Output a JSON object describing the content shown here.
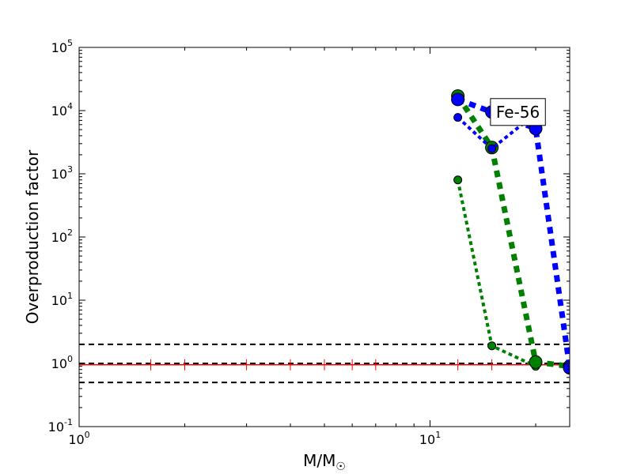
{
  "chart_data": {
    "type": "line",
    "title": "",
    "xlabel": "M/M",
    "xlabel_sub": "☉",
    "ylabel": "Overproduction factor",
    "xscale": "log",
    "yscale": "log",
    "xlim": [
      1,
      25
    ],
    "ylim": [
      0.1,
      100000
    ],
    "grid": false,
    "x_ticks": [
      {
        "value": 1,
        "base": "10",
        "exp": "0"
      },
      {
        "value": 10,
        "base": "10",
        "exp": "1"
      }
    ],
    "y_ticks": [
      {
        "value": 0.1,
        "base": "10",
        "exp": "-1"
      },
      {
        "value": 1,
        "base": "10",
        "exp": "0"
      },
      {
        "value": 10,
        "base": "10",
        "exp": "1"
      },
      {
        "value": 100,
        "base": "10",
        "exp": "2"
      },
      {
        "value": 1000,
        "base": "10",
        "exp": "3"
      },
      {
        "value": 10000,
        "base": "10",
        "exp": "4"
      },
      {
        "value": 100000,
        "base": "10",
        "exp": "5"
      }
    ],
    "reference_lines": [
      {
        "y": 2,
        "color": "#000000",
        "dash": "dashed"
      },
      {
        "y": 1,
        "color": "#000000",
        "dash": "dashed"
      },
      {
        "y": 0.5,
        "color": "#000000",
        "dash": "dashed"
      }
    ],
    "solar_line": {
      "y": 0.95,
      "color": "#ff0000",
      "x": [
        1,
        25
      ]
    },
    "solar_markers_x": [
      1.6,
      2,
      3,
      4,
      5,
      6,
      7,
      12,
      15
    ],
    "series": [
      {
        "color": "#008000",
        "marker_size": 5,
        "line_width": 4,
        "x": [
          12,
          15,
          20
        ],
        "y": [
          800,
          1.9,
          0.9
        ]
      },
      {
        "color": "#008000",
        "marker_size": 8,
        "line_width": 7,
        "x": [
          12,
          15,
          20,
          25
        ],
        "y": [
          17000,
          2600,
          1.05,
          0.9
        ]
      },
      {
        "color": "#0000ff",
        "marker_size": 5,
        "line_width": 4,
        "x": [
          12,
          15,
          20
        ],
        "y": [
          7800,
          2500,
          9000
        ]
      },
      {
        "color": "#0000ff",
        "marker_size": 8,
        "line_width": 7,
        "x": [
          12,
          15,
          20,
          25
        ],
        "y": [
          15000,
          9500,
          5200,
          0.85
        ]
      }
    ],
    "annotations": [
      {
        "text": "Fe-56",
        "x": 17.8,
        "y": 9500
      }
    ]
  }
}
